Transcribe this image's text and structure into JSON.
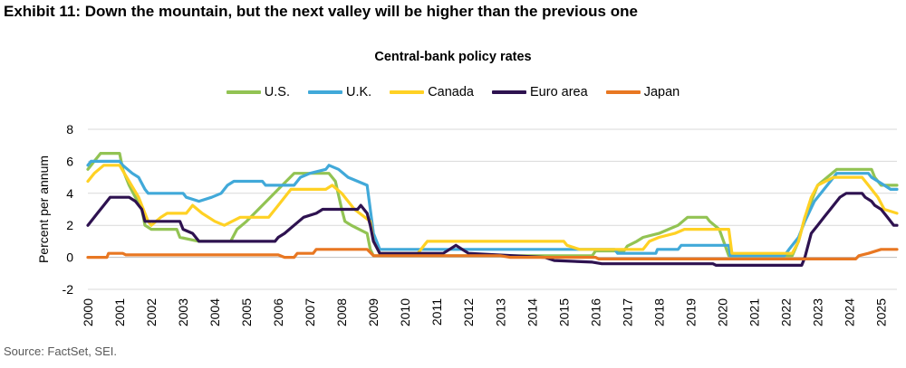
{
  "header": {
    "exhibit_title": "Exhibit 11: Down the mountain, but the next valley will be higher than the previous one",
    "source": "Source: FactSet, SEI."
  },
  "chart_data": {
    "type": "line",
    "title": "Central-bank policy rates",
    "xlabel": "",
    "ylabel": "Percent per annum",
    "ylim": [
      -2,
      8
    ],
    "xlim": [
      2000.0,
      2025.5
    ],
    "yticks": [
      "-2",
      "0",
      "2",
      "4",
      "6",
      "8"
    ],
    "xticks": [
      "2000",
      "2001",
      "2002",
      "2003",
      "2004",
      "2005",
      "2006",
      "2007",
      "2008",
      "2009",
      "2010",
      "2011",
      "2012",
      "2013",
      "2014",
      "2015",
      "2016",
      "2017",
      "2018",
      "2019",
      "2020",
      "2021",
      "2022",
      "2023",
      "2024",
      "2025"
    ],
    "grid": "horizontal",
    "legend_position": "top",
    "series": [
      {
        "name": "U.S.",
        "color": "#92C353",
        "points": [
          [
            2000.0,
            5.5
          ],
          [
            2000.2,
            6.0
          ],
          [
            2000.4,
            6.5
          ],
          [
            2001.0,
            6.5
          ],
          [
            2001.1,
            5.5
          ],
          [
            2001.3,
            4.5
          ],
          [
            2001.5,
            3.75
          ],
          [
            2001.7,
            3.0
          ],
          [
            2001.8,
            2.0
          ],
          [
            2002.0,
            1.75
          ],
          [
            2002.8,
            1.75
          ],
          [
            2002.9,
            1.25
          ],
          [
            2003.5,
            1.0
          ],
          [
            2004.5,
            1.0
          ],
          [
            2004.7,
            1.75
          ],
          [
            2005.0,
            2.25
          ],
          [
            2005.5,
            3.25
          ],
          [
            2006.0,
            4.25
          ],
          [
            2006.5,
            5.25
          ],
          [
            2007.6,
            5.25
          ],
          [
            2007.8,
            4.75
          ],
          [
            2008.0,
            3.0
          ],
          [
            2008.1,
            2.25
          ],
          [
            2008.3,
            2.0
          ],
          [
            2008.8,
            1.5
          ],
          [
            2008.9,
            0.5
          ],
          [
            2009.0,
            0.1
          ],
          [
            2015.9,
            0.1
          ],
          [
            2016.0,
            0.4
          ],
          [
            2016.9,
            0.4
          ],
          [
            2017.0,
            0.7
          ],
          [
            2017.3,
            1.0
          ],
          [
            2017.5,
            1.25
          ],
          [
            2018.0,
            1.5
          ],
          [
            2018.3,
            1.75
          ],
          [
            2018.6,
            2.0
          ],
          [
            2018.9,
            2.5
          ],
          [
            2019.5,
            2.5
          ],
          [
            2019.6,
            2.25
          ],
          [
            2019.9,
            1.75
          ],
          [
            2020.2,
            0.1
          ],
          [
            2022.2,
            0.1
          ],
          [
            2022.4,
            1.0
          ],
          [
            2022.6,
            2.5
          ],
          [
            2022.8,
            3.5
          ],
          [
            2023.0,
            4.5
          ],
          [
            2023.3,
            5.0
          ],
          [
            2023.6,
            5.5
          ],
          [
            2024.7,
            5.5
          ],
          [
            2024.8,
            5.0
          ],
          [
            2025.0,
            4.5
          ],
          [
            2025.5,
            4.5
          ]
        ]
      },
      {
        "name": "U.K.",
        "color": "#41A9D9",
        "points": [
          [
            2000.0,
            5.75
          ],
          [
            2000.1,
            6.0
          ],
          [
            2001.0,
            6.0
          ],
          [
            2001.1,
            5.75
          ],
          [
            2001.4,
            5.25
          ],
          [
            2001.6,
            5.0
          ],
          [
            2001.8,
            4.25
          ],
          [
            2001.9,
            4.0
          ],
          [
            2003.0,
            4.0
          ],
          [
            2003.1,
            3.75
          ],
          [
            2003.5,
            3.5
          ],
          [
            2003.9,
            3.75
          ],
          [
            2004.2,
            4.0
          ],
          [
            2004.4,
            4.5
          ],
          [
            2004.6,
            4.75
          ],
          [
            2005.5,
            4.75
          ],
          [
            2005.6,
            4.5
          ],
          [
            2006.5,
            4.5
          ],
          [
            2006.7,
            5.0
          ],
          [
            2007.0,
            5.25
          ],
          [
            2007.5,
            5.5
          ],
          [
            2007.6,
            5.75
          ],
          [
            2007.9,
            5.5
          ],
          [
            2008.2,
            5.0
          ],
          [
            2008.8,
            4.5
          ],
          [
            2008.9,
            3.0
          ],
          [
            2009.0,
            1.5
          ],
          [
            2009.2,
            0.5
          ],
          [
            2016.6,
            0.5
          ],
          [
            2016.7,
            0.25
          ],
          [
            2017.9,
            0.25
          ],
          [
            2017.95,
            0.5
          ],
          [
            2018.6,
            0.5
          ],
          [
            2018.7,
            0.75
          ],
          [
            2020.2,
            0.75
          ],
          [
            2020.25,
            0.1
          ],
          [
            2021.95,
            0.1
          ],
          [
            2022.1,
            0.5
          ],
          [
            2022.4,
            1.25
          ],
          [
            2022.6,
            2.25
          ],
          [
            2022.9,
            3.5
          ],
          [
            2023.2,
            4.25
          ],
          [
            2023.6,
            5.25
          ],
          [
            2024.6,
            5.25
          ],
          [
            2024.7,
            5.0
          ],
          [
            2025.1,
            4.5
          ],
          [
            2025.3,
            4.25
          ],
          [
            2025.5,
            4.25
          ]
        ]
      },
      {
        "name": "Canada",
        "color": "#FFD124",
        "points": [
          [
            2000.0,
            4.75
          ],
          [
            2000.2,
            5.25
          ],
          [
            2000.5,
            5.75
          ],
          [
            2001.0,
            5.75
          ],
          [
            2001.3,
            4.75
          ],
          [
            2001.6,
            3.75
          ],
          [
            2001.9,
            2.25
          ],
          [
            2002.0,
            2.0
          ],
          [
            2002.3,
            2.5
          ],
          [
            2002.5,
            2.75
          ],
          [
            2003.1,
            2.75
          ],
          [
            2003.3,
            3.25
          ],
          [
            2003.6,
            2.75
          ],
          [
            2004.0,
            2.25
          ],
          [
            2004.3,
            2.0
          ],
          [
            2004.8,
            2.5
          ],
          [
            2005.7,
            2.5
          ],
          [
            2006.0,
            3.25
          ],
          [
            2006.4,
            4.25
          ],
          [
            2007.5,
            4.25
          ],
          [
            2007.7,
            4.5
          ],
          [
            2008.0,
            4.0
          ],
          [
            2008.4,
            3.0
          ],
          [
            2008.9,
            2.25
          ],
          [
            2009.0,
            1.0
          ],
          [
            2009.2,
            0.25
          ],
          [
            2010.4,
            0.25
          ],
          [
            2010.6,
            0.75
          ],
          [
            2010.7,
            1.0
          ],
          [
            2015.0,
            1.0
          ],
          [
            2015.1,
            0.75
          ],
          [
            2015.5,
            0.5
          ],
          [
            2017.5,
            0.5
          ],
          [
            2017.7,
            1.0
          ],
          [
            2018.0,
            1.25
          ],
          [
            2018.5,
            1.5
          ],
          [
            2018.8,
            1.75
          ],
          [
            2020.2,
            1.75
          ],
          [
            2020.3,
            0.25
          ],
          [
            2022.2,
            0.25
          ],
          [
            2022.4,
            1.0
          ],
          [
            2022.6,
            2.5
          ],
          [
            2022.8,
            3.75
          ],
          [
            2023.0,
            4.5
          ],
          [
            2023.5,
            5.0
          ],
          [
            2024.4,
            5.0
          ],
          [
            2024.6,
            4.5
          ],
          [
            2024.9,
            3.75
          ],
          [
            2025.1,
            3.0
          ],
          [
            2025.5,
            2.75
          ]
        ]
      },
      {
        "name": "Euro area",
        "color": "#2E1250",
        "points": [
          [
            2000.0,
            2.0
          ],
          [
            2000.3,
            2.75
          ],
          [
            2000.5,
            3.25
          ],
          [
            2000.7,
            3.75
          ],
          [
            2001.3,
            3.75
          ],
          [
            2001.5,
            3.5
          ],
          [
            2001.7,
            3.0
          ],
          [
            2001.8,
            2.25
          ],
          [
            2002.9,
            2.25
          ],
          [
            2003.0,
            1.75
          ],
          [
            2003.3,
            1.5
          ],
          [
            2003.5,
            1.0
          ],
          [
            2005.9,
            1.0
          ],
          [
            2006.0,
            1.25
          ],
          [
            2006.2,
            1.5
          ],
          [
            2006.5,
            2.0
          ],
          [
            2006.8,
            2.5
          ],
          [
            2007.2,
            2.75
          ],
          [
            2007.4,
            3.0
          ],
          [
            2008.5,
            3.0
          ],
          [
            2008.6,
            3.25
          ],
          [
            2008.8,
            2.75
          ],
          [
            2008.9,
            2.0
          ],
          [
            2009.0,
            1.0
          ],
          [
            2009.2,
            0.25
          ],
          [
            2011.2,
            0.25
          ],
          [
            2011.4,
            0.5
          ],
          [
            2011.6,
            0.75
          ],
          [
            2011.8,
            0.5
          ],
          [
            2012.0,
            0.25
          ],
          [
            2014.4,
            0.0
          ],
          [
            2014.7,
            -0.2
          ],
          [
            2015.9,
            -0.3
          ],
          [
            2016.2,
            -0.4
          ],
          [
            2019.7,
            -0.4
          ],
          [
            2019.8,
            -0.5
          ],
          [
            2022.5,
            -0.5
          ],
          [
            2022.6,
            0.0
          ],
          [
            2022.7,
            0.75
          ],
          [
            2022.8,
            1.5
          ],
          [
            2023.0,
            2.0
          ],
          [
            2023.2,
            2.5
          ],
          [
            2023.4,
            3.0
          ],
          [
            2023.7,
            3.75
          ],
          [
            2023.9,
            4.0
          ],
          [
            2024.4,
            4.0
          ],
          [
            2024.5,
            3.75
          ],
          [
            2024.7,
            3.5
          ],
          [
            2024.8,
            3.25
          ],
          [
            2025.0,
            3.0
          ],
          [
            2025.2,
            2.5
          ],
          [
            2025.4,
            2.0
          ],
          [
            2025.5,
            2.0
          ]
        ]
      },
      {
        "name": "Japan",
        "color": "#E87722",
        "points": [
          [
            2000.0,
            0.0
          ],
          [
            2000.6,
            0.0
          ],
          [
            2000.65,
            0.25
          ],
          [
            2001.1,
            0.25
          ],
          [
            2001.2,
            0.15
          ],
          [
            2006.0,
            0.15
          ],
          [
            2006.2,
            0.0
          ],
          [
            2006.5,
            0.0
          ],
          [
            2006.6,
            0.25
          ],
          [
            2007.1,
            0.25
          ],
          [
            2007.2,
            0.5
          ],
          [
            2008.8,
            0.5
          ],
          [
            2008.9,
            0.3
          ],
          [
            2009.0,
            0.1
          ],
          [
            2013.0,
            0.1
          ],
          [
            2013.3,
            0.0
          ],
          [
            2016.0,
            0.0
          ],
          [
            2016.1,
            -0.1
          ],
          [
            2024.2,
            -0.1
          ],
          [
            2024.3,
            0.1
          ],
          [
            2024.6,
            0.25
          ],
          [
            2025.0,
            0.5
          ],
          [
            2025.5,
            0.5
          ]
        ]
      }
    ]
  }
}
